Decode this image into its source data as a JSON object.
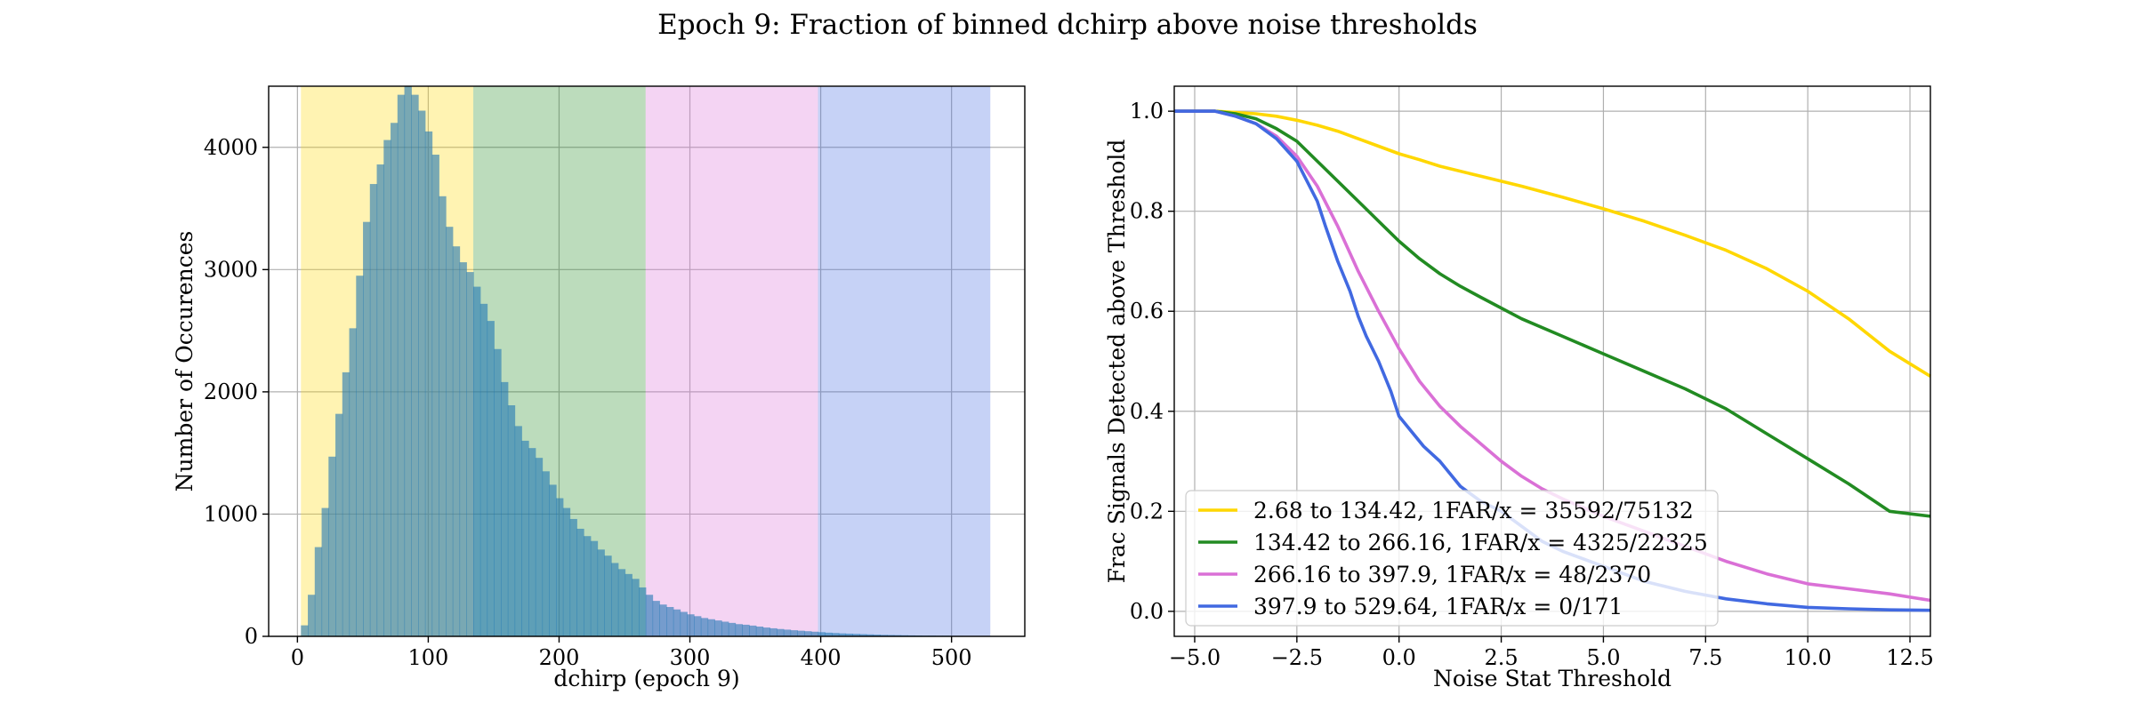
{
  "figure": {
    "title": "Epoch 9: Fraction of binned dchirp above noise thresholds"
  },
  "chart_data": [
    {
      "type": "bar",
      "subtype": "histogram",
      "xlabel": "dchirp (epoch 9)",
      "ylabel": "Number of Occurences",
      "xlim": [
        -22,
        556
      ],
      "ylim": [
        0,
        4500
      ],
      "xticks": [
        0,
        100,
        200,
        300,
        400,
        500
      ],
      "yticks": [
        0,
        1000,
        2000,
        3000,
        4000
      ],
      "grid": true,
      "bands": [
        {
          "from": 2.68,
          "to": 134.42,
          "color": "#ffd700"
        },
        {
          "from": 134.42,
          "to": 266.16,
          "color": "#228b22"
        },
        {
          "from": 266.16,
          "to": 397.9,
          "color": "#da70d6"
        },
        {
          "from": 397.9,
          "to": 529.64,
          "color": "#4169e1"
        }
      ],
      "bin_width": 5.27,
      "bin_start": 2.68,
      "values": [
        90,
        340,
        730,
        1050,
        1470,
        1820,
        2160,
        2520,
        2950,
        3390,
        3700,
        3860,
        4060,
        4200,
        4430,
        4560,
        4430,
        4300,
        4130,
        3940,
        3600,
        3350,
        3190,
        3060,
        2980,
        2860,
        2720,
        2580,
        2350,
        2080,
        1890,
        1720,
        1600,
        1540,
        1460,
        1350,
        1240,
        1130,
        1050,
        960,
        880,
        820,
        780,
        710,
        660,
        600,
        550,
        510,
        470,
        400,
        340,
        290,
        260,
        240,
        220,
        200,
        180,
        165,
        150,
        140,
        130,
        120,
        110,
        100,
        95,
        88,
        80,
        72,
        66,
        60,
        55,
        50,
        46,
        42,
        38,
        34,
        30,
        27,
        24,
        22,
        20,
        18,
        16,
        14,
        12,
        11,
        10,
        9,
        8,
        7,
        6,
        6,
        5,
        5,
        4,
        4,
        3,
        3,
        3,
        2
      ]
    },
    {
      "type": "line",
      "xlabel": "Noise Stat Threshold",
      "ylabel": "Frac Signals Detected above Threshold",
      "xlim": [
        -5.5,
        13
      ],
      "ylim": [
        -0.05,
        1.05
      ],
      "xticks": [
        -5.0,
        -2.5,
        0.0,
        2.5,
        5.0,
        7.5,
        10.0,
        12.5
      ],
      "xtick_labels": [
        "−5.0",
        "−2.5",
        "0.0",
        "2.5",
        "5.0",
        "7.5",
        "10.0",
        "12.5"
      ],
      "yticks": [
        0.0,
        0.2,
        0.4,
        0.6,
        0.8,
        1.0
      ],
      "ytick_labels": [
        "0.0",
        "0.2",
        "0.4",
        "0.6",
        "0.8",
        "1.0"
      ],
      "grid": true,
      "legend_position": "lower-left",
      "series": [
        {
          "name": "2.68 to 134.42, 1FAR/x = 35592/75132",
          "color": "#ffd700",
          "x": [
            -5.5,
            -4.5,
            -3.5,
            -3.0,
            -2.5,
            -2.0,
            -1.5,
            -1.0,
            -0.5,
            0.0,
            0.5,
            1.0,
            2.0,
            3.0,
            4.0,
            5.0,
            6.0,
            7.0,
            8.0,
            9.0,
            10.0,
            11.0,
            12.0,
            13.0
          ],
          "y": [
            1.0,
            1.0,
            0.995,
            0.99,
            0.982,
            0.972,
            0.96,
            0.945,
            0.93,
            0.915,
            0.903,
            0.89,
            0.87,
            0.85,
            0.828,
            0.805,
            0.78,
            0.752,
            0.722,
            0.685,
            0.64,
            0.585,
            0.52,
            0.47
          ]
        },
        {
          "name": "134.42 to 266.16, 1FAR/x = 4325/22325",
          "color": "#228b22",
          "x": [
            -5.5,
            -4.5,
            -4.0,
            -3.5,
            -3.0,
            -2.5,
            -2.0,
            -1.5,
            -1.0,
            -0.5,
            0.0,
            0.5,
            1.0,
            1.5,
            2.0,
            3.0,
            4.0,
            5.0,
            6.0,
            7.0,
            8.0,
            9.0,
            10.0,
            11.0,
            12.0,
            13.0
          ],
          "y": [
            1.0,
            1.0,
            0.995,
            0.985,
            0.965,
            0.94,
            0.9,
            0.86,
            0.82,
            0.78,
            0.74,
            0.705,
            0.675,
            0.65,
            0.628,
            0.585,
            0.55,
            0.515,
            0.48,
            0.445,
            0.405,
            0.355,
            0.305,
            0.255,
            0.2,
            0.19
          ]
        },
        {
          "name": "266.16 to 397.9, 1FAR/x = 48/2370",
          "color": "#da70d6",
          "x": [
            -5.5,
            -4.5,
            -4.0,
            -3.5,
            -3.0,
            -2.5,
            -2.0,
            -1.5,
            -1.0,
            -0.5,
            0.0,
            0.5,
            1.0,
            1.5,
            2.0,
            2.5,
            3.0,
            3.5,
            4.0,
            5.0,
            6.0,
            7.0,
            8.0,
            9.0,
            10.0,
            11.0,
            12.0,
            13.0
          ],
          "y": [
            1.0,
            1.0,
            0.99,
            0.975,
            0.95,
            0.91,
            0.85,
            0.77,
            0.68,
            0.6,
            0.525,
            0.46,
            0.41,
            0.37,
            0.335,
            0.3,
            0.27,
            0.245,
            0.225,
            0.19,
            0.16,
            0.13,
            0.1,
            0.075,
            0.055,
            0.045,
            0.035,
            0.022
          ]
        },
        {
          "name": "397.9 to 529.64, 1FAR/x = 0/171",
          "color": "#4169e1",
          "x": [
            -5.5,
            -4.5,
            -4.0,
            -3.5,
            -3.0,
            -2.5,
            -2.0,
            -1.8,
            -1.5,
            -1.2,
            -1.0,
            -0.8,
            -0.5,
            -0.2,
            0.0,
            0.3,
            0.6,
            1.0,
            1.5,
            2.0,
            2.5,
            3.0,
            3.5,
            4.0,
            5.0,
            6.0,
            7.0,
            8.0,
            9.0,
            10.0,
            11.0,
            12.0,
            13.0
          ],
          "y": [
            1.0,
            1.0,
            0.99,
            0.975,
            0.945,
            0.9,
            0.82,
            0.77,
            0.7,
            0.64,
            0.59,
            0.55,
            0.5,
            0.44,
            0.39,
            0.36,
            0.33,
            0.3,
            0.25,
            0.22,
            0.2,
            0.17,
            0.14,
            0.12,
            0.09,
            0.06,
            0.04,
            0.025,
            0.015,
            0.008,
            0.005,
            0.003,
            0.002
          ]
        }
      ]
    }
  ]
}
